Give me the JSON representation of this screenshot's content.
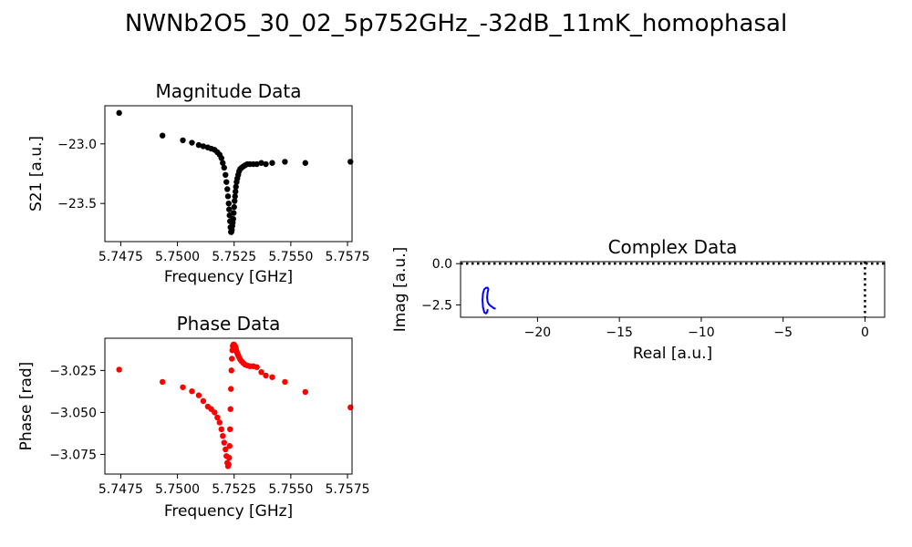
{
  "figure": {
    "suptitle": "NWNb2O5_30_02_5p752GHz_-32dB_11mK_homophasal"
  },
  "chart_data": [
    {
      "type": "scatter",
      "title": "Magnitude Data",
      "xlabel": "Frequency [GHz]",
      "ylabel": "S21 [a.u.]",
      "xlim": [
        5.7468,
        5.7577
      ],
      "ylim": [
        -23.82,
        -22.68
      ],
      "xticks": [
        "5.7475",
        "5.7500",
        "5.7525",
        "5.7550",
        "5.7575"
      ],
      "xtick_values": [
        5.7475,
        5.75,
        5.7525,
        5.755,
        5.7575
      ],
      "yticks": [
        "−23.0",
        "−23.5"
      ],
      "ytick_values": [
        -23.0,
        -23.5
      ],
      "grid": false,
      "series": [
        {
          "color": "#000000",
          "x": [
            5.74743,
            5.74934,
            5.75024,
            5.75064,
            5.75094,
            5.75114,
            5.75134,
            5.75149,
            5.75164,
            5.75176,
            5.75186,
            5.75194,
            5.752,
            5.75206,
            5.75212,
            5.75216,
            5.7522,
            5.75223,
            5.75226,
            5.75228,
            5.7523,
            5.75232,
            5.75234,
            5.75236,
            5.75238,
            5.7524,
            5.75242,
            5.75244,
            5.75246,
            5.75248,
            5.7525,
            5.75252,
            5.75254,
            5.75256,
            5.75258,
            5.75261,
            5.75264,
            5.75268,
            5.75272,
            5.75277,
            5.75283,
            5.7529,
            5.75298,
            5.75308,
            5.7532,
            5.75335,
            5.7535,
            5.7537,
            5.7539,
            5.75418,
            5.75474,
            5.75564,
            5.75763
          ],
          "y": [
            -22.74,
            -22.93,
            -22.97,
            -22.99,
            -23.01,
            -23.02,
            -23.03,
            -23.04,
            -23.05,
            -23.07,
            -23.09,
            -23.12,
            -23.16,
            -23.2,
            -23.26,
            -23.32,
            -23.38,
            -23.44,
            -23.5,
            -23.55,
            -23.6,
            -23.65,
            -23.7,
            -23.74,
            -23.74,
            -23.72,
            -23.69,
            -23.66,
            -23.63,
            -23.58,
            -23.53,
            -23.48,
            -23.44,
            -23.4,
            -23.36,
            -23.32,
            -23.29,
            -23.26,
            -23.23,
            -23.21,
            -23.2,
            -23.19,
            -23.18,
            -23.17,
            -23.17,
            -23.17,
            -23.17,
            -23.16,
            -23.17,
            -23.16,
            -23.15,
            -23.16,
            -23.15
          ]
        }
      ]
    },
    {
      "type": "scatter",
      "title": "Phase Data",
      "xlabel": "Frequency [GHz]",
      "ylabel": "Phase [rad]",
      "xlim": [
        5.7468,
        5.7577
      ],
      "ylim": [
        -3.0867,
        -3.0058
      ],
      "xticks": [
        "5.7475",
        "5.7500",
        "5.7525",
        "5.7550",
        "5.7575"
      ],
      "xtick_values": [
        5.7475,
        5.75,
        5.7525,
        5.755,
        5.7575
      ],
      "yticks": [
        "−3.025",
        "−3.050",
        "−3.075"
      ],
      "ytick_values": [
        -3.025,
        -3.05,
        -3.075
      ],
      "grid": false,
      "series": [
        {
          "color": "#ff0000",
          "x": [
            5.74743,
            5.74934,
            5.75024,
            5.75064,
            5.75094,
            5.75114,
            5.75134,
            5.75149,
            5.75164,
            5.75176,
            5.75186,
            5.75194,
            5.752,
            5.75206,
            5.75212,
            5.75216,
            5.7522,
            5.75223,
            5.75226,
            5.75228,
            5.7523,
            5.75232,
            5.75234,
            5.75236,
            5.75238,
            5.7524,
            5.75242,
            5.75244,
            5.75246,
            5.75248,
            5.7525,
            5.75252,
            5.75254,
            5.75256,
            5.75258,
            5.75261,
            5.75264,
            5.75268,
            5.75272,
            5.75277,
            5.75283,
            5.7529,
            5.75298,
            5.75308,
            5.7532,
            5.75335,
            5.7535,
            5.7537,
            5.7539,
            5.75418,
            5.75474,
            5.75564,
            5.75763
          ],
          "y": [
            -3.0245,
            -3.0318,
            -3.035,
            -3.0374,
            -3.0398,
            -3.0432,
            -3.0465,
            -3.048,
            -3.05,
            -3.053,
            -3.056,
            -3.06,
            -3.064,
            -3.068,
            -3.072,
            -3.076,
            -3.08,
            -3.082,
            -3.081,
            -3.077,
            -3.07,
            -3.06,
            -3.048,
            -3.036,
            -3.025,
            -3.018,
            -3.013,
            -3.0105,
            -3.0098,
            -3.0095,
            -3.0097,
            -3.01,
            -3.0105,
            -3.0112,
            -3.012,
            -3.0135,
            -3.0148,
            -3.016,
            -3.0172,
            -3.0185,
            -3.0195,
            -3.0205,
            -3.0215,
            -3.022,
            -3.0225,
            -3.0225,
            -3.023,
            -3.026,
            -3.028,
            -3.029,
            -3.0318,
            -3.0378,
            -3.047
          ]
        }
      ]
    },
    {
      "type": "line",
      "title": "Complex Data",
      "xlabel": "Real [a.u.]",
      "ylabel": "Imag [a.u.]",
      "xlim": [
        -24.7,
        1.2
      ],
      "ylim": [
        -3.25,
        0.12
      ],
      "xticks": [
        "−20",
        "−15",
        "−10",
        "−5",
        "0"
      ],
      "xtick_values": [
        -20,
        -15,
        -10,
        -5,
        0
      ],
      "yticks": [
        "0.0",
        "−2.5"
      ],
      "ytick_values": [
        0.0,
        -2.5
      ],
      "grid": false,
      "reference_lines": [
        {
          "orientation": "horizontal",
          "value": 0,
          "style": "dotted",
          "color": "#000000"
        },
        {
          "orientation": "vertical",
          "value": 0,
          "style": "dotted",
          "color": "#000000"
        }
      ],
      "series": [
        {
          "color": "#0000ff",
          "x": [
            -22.6,
            -22.65,
            -22.7,
            -22.78,
            -22.88,
            -22.98,
            -23.05,
            -23.08,
            -23.05,
            -23.0,
            -23.06,
            -23.15,
            -23.25,
            -23.33,
            -23.36,
            -23.33,
            -23.25,
            -23.15,
            -23.08,
            -23.05
          ],
          "y": [
            -2.72,
            -2.71,
            -2.68,
            -2.62,
            -2.55,
            -2.45,
            -2.3,
            -2.05,
            -1.75,
            -1.55,
            -1.45,
            -1.47,
            -1.55,
            -1.8,
            -2.2,
            -2.65,
            -2.95,
            -3.02,
            -2.95,
            -2.8
          ]
        }
      ]
    }
  ]
}
